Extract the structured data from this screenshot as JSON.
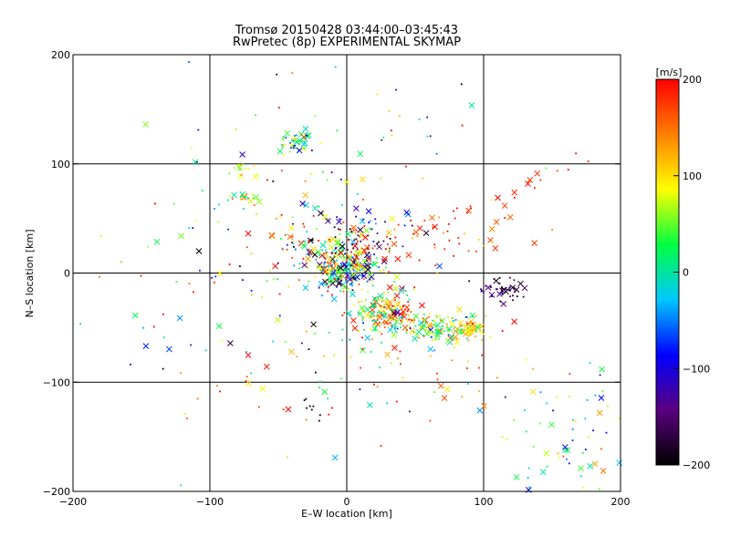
{
  "chart_data": {
    "type": "scatter",
    "title": "Tromsø 20150428 03:44:00–03:45:43",
    "subtitle": "RwPretec (8p) EXPERIMENTAL SKYMAP",
    "xlabel": "E–W location [km]",
    "ylabel": "N–S location [km]",
    "xlim": [
      -200,
      200
    ],
    "ylim": [
      -200,
      200
    ],
    "xticks": [
      -200,
      -100,
      0,
      100,
      200
    ],
    "yticks": [
      -200,
      -100,
      0,
      100,
      200
    ],
    "x_tick_labels": [
      "−200",
      "−100",
      "0",
      "100",
      "200"
    ],
    "y_tick_labels": [
      "−200",
      "−100",
      "0",
      "100",
      "200"
    ],
    "grid": true,
    "colorbar": {
      "label": "[m/s]",
      "range": [
        -200,
        200
      ],
      "ticks": [
        200,
        100,
        0,
        -100,
        -200
      ],
      "tick_labels": [
        "200",
        "100",
        "0",
        "−100",
        "−200"
      ],
      "colormap": [
        "#000000",
        "#5a007f",
        "#0000ff",
        "#00c8ff",
        "#00ff40",
        "#ffff00",
        "#ff8000",
        "#ff0000"
      ]
    },
    "marker_note_small": "dot",
    "marker_note_large": "x",
    "clusters": [
      {
        "x": -38,
        "y": 120,
        "sx": 6,
        "sy": 5,
        "n": 55,
        "v": 20,
        "vs": 60
      },
      {
        "x": -78,
        "y": 95,
        "sx": 5,
        "sy": 4,
        "n": 14,
        "v": 90,
        "vs": 30
      },
      {
        "x": -75,
        "y": 69,
        "sx": 7,
        "sy": 3,
        "n": 20,
        "v": 60,
        "vs": 50
      },
      {
        "x": 0,
        "y": 5,
        "sx": 12,
        "sy": 10,
        "n": 260,
        "v": 0,
        "vs": 120
      },
      {
        "x": -15,
        "y": 25,
        "sx": 18,
        "sy": 15,
        "n": 90,
        "v": 40,
        "vs": 140
      },
      {
        "x": 10,
        "y": 40,
        "sx": 20,
        "sy": 10,
        "n": 40,
        "v": -150,
        "vs": 60
      },
      {
        "x": 30,
        "y": -35,
        "sx": 10,
        "sy": 10,
        "n": 130,
        "v": 140,
        "vs": 70
      },
      {
        "x": 25,
        "y": -40,
        "sx": 14,
        "sy": 12,
        "n": 80,
        "v": 20,
        "vs": 50
      },
      {
        "x": 70,
        "y": -50,
        "sx": 12,
        "sy": 7,
        "n": 120,
        "v": 40,
        "vs": 60
      },
      {
        "x": 90,
        "y": -52,
        "sx": 5,
        "sy": 3,
        "n": 40,
        "v": 110,
        "vs": 30
      },
      {
        "x": 115,
        "y": -15,
        "sx": 10,
        "sy": 5,
        "n": 50,
        "v": -170,
        "vs": 40
      },
      {
        "x": 50,
        "y": 30,
        "sx": 40,
        "sy": 15,
        "n": 60,
        "v": 170,
        "vs": 40
      },
      {
        "x": 160,
        "y": -150,
        "sx": 25,
        "sy": 30,
        "n": 70,
        "v": 10,
        "vs": 70
      },
      {
        "x": -60,
        "y": 0,
        "sx": 60,
        "sy": 50,
        "n": 120,
        "v": 30,
        "vs": 130
      },
      {
        "x": 20,
        "y": 120,
        "sx": 60,
        "sy": 40,
        "n": 50,
        "v": 30,
        "vs": 120
      },
      {
        "x": -40,
        "y": -90,
        "sx": 60,
        "sy": 40,
        "n": 45,
        "v": 40,
        "vs": 130
      },
      {
        "x": 80,
        "y": -90,
        "sx": 50,
        "sy": 20,
        "n": 35,
        "v": 150,
        "vs": 50
      },
      {
        "x": -30,
        "y": -125,
        "sx": 6,
        "sy": 5,
        "n": 8,
        "v": -200,
        "vs": 10
      }
    ],
    "streak": {
      "x0": 5,
      "y0": 15,
      "x1": 175,
      "y1": 104,
      "n": 30,
      "v": 185,
      "vs": 20
    }
  }
}
